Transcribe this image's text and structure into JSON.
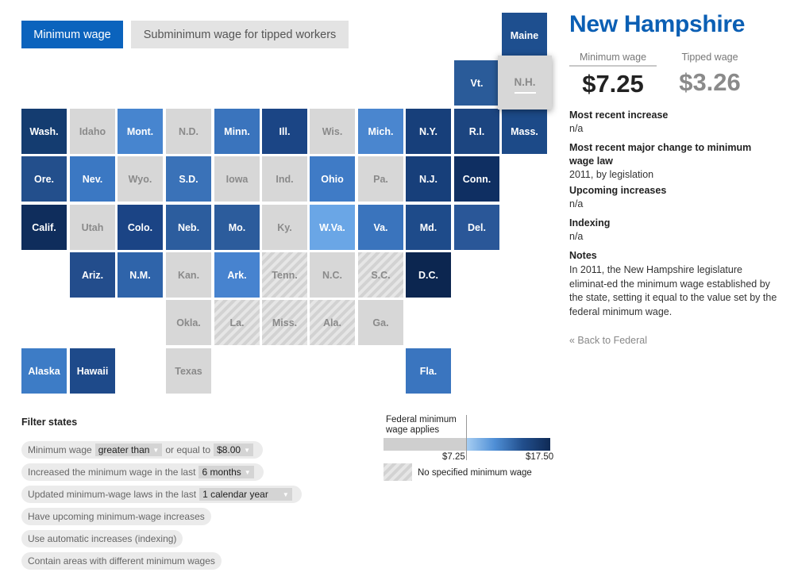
{
  "toggle": {
    "minimum_label": "Minimum wage",
    "subminimum_label": "Subminimum wage for tipped workers"
  },
  "map": {
    "selected_state": "N.H.",
    "tiles": [
      {
        "abbr": "Maine",
        "fill": "#1e4f8f",
        "style": "color"
      },
      {
        "abbr": "Vt.",
        "fill": "#2a5b99",
        "style": "color"
      },
      {
        "abbr": "N.H.",
        "fill": "#d7d7d7",
        "style": "selected"
      },
      {
        "abbr": "Wash.",
        "fill": "#143c70",
        "style": "color"
      },
      {
        "abbr": "Idaho",
        "fill": "#d7d7d7",
        "style": "grey"
      },
      {
        "abbr": "Mont.",
        "fill": "#4785cf",
        "style": "color"
      },
      {
        "abbr": "N.D.",
        "fill": "#d7d7d7",
        "style": "grey"
      },
      {
        "abbr": "Minn.",
        "fill": "#3a74bd",
        "style": "color"
      },
      {
        "abbr": "Ill.",
        "fill": "#1b4585",
        "style": "color"
      },
      {
        "abbr": "Wis.",
        "fill": "#d7d7d7",
        "style": "grey"
      },
      {
        "abbr": "Mich.",
        "fill": "#4a86cf",
        "style": "color"
      },
      {
        "abbr": "N.Y.",
        "fill": "#173f7a",
        "style": "color"
      },
      {
        "abbr": "R.I.",
        "fill": "#1c4580",
        "style": "color"
      },
      {
        "abbr": "Mass.",
        "fill": "#1c4a88",
        "style": "color"
      },
      {
        "abbr": "Ore.",
        "fill": "#234f8c",
        "style": "color"
      },
      {
        "abbr": "Nev.",
        "fill": "#3b78c3",
        "style": "color"
      },
      {
        "abbr": "Wyo.",
        "fill": "#d7d7d7",
        "style": "grey"
      },
      {
        "abbr": "S.D.",
        "fill": "#3a72b8",
        "style": "color"
      },
      {
        "abbr": "Iowa",
        "fill": "#d7d7d7",
        "style": "grey"
      },
      {
        "abbr": "Ind.",
        "fill": "#d7d7d7",
        "style": "grey"
      },
      {
        "abbr": "Ohio",
        "fill": "#3f7bc6",
        "style": "color"
      },
      {
        "abbr": "Pa.",
        "fill": "#d7d7d7",
        "style": "grey"
      },
      {
        "abbr": "N.J.",
        "fill": "#173f7a",
        "style": "color"
      },
      {
        "abbr": "Conn.",
        "fill": "#0f2f62",
        "style": "color"
      },
      {
        "abbr": "Calif.",
        "fill": "#0f2d5c",
        "style": "color"
      },
      {
        "abbr": "Utah",
        "fill": "#d7d7d7",
        "style": "grey"
      },
      {
        "abbr": "Colo.",
        "fill": "#1b4485",
        "style": "color"
      },
      {
        "abbr": "Neb.",
        "fill": "#2c5d9e",
        "style": "color"
      },
      {
        "abbr": "Mo.",
        "fill": "#2c5c9c",
        "style": "color"
      },
      {
        "abbr": "Ky.",
        "fill": "#d7d7d7",
        "style": "grey"
      },
      {
        "abbr": "W.Va.",
        "fill": "#6aa6e6",
        "style": "color"
      },
      {
        "abbr": "Va.",
        "fill": "#3a74bd",
        "style": "color"
      },
      {
        "abbr": "Md.",
        "fill": "#1e4b8a",
        "style": "color"
      },
      {
        "abbr": "Del.",
        "fill": "#2a5798",
        "style": "color"
      },
      {
        "abbr": "Ariz.",
        "fill": "#234d8c",
        "style": "color"
      },
      {
        "abbr": "N.M.",
        "fill": "#2f64aa",
        "style": "color"
      },
      {
        "abbr": "Kan.",
        "fill": "#d7d7d7",
        "style": "grey"
      },
      {
        "abbr": "Ark.",
        "fill": "#4783cf",
        "style": "color"
      },
      {
        "abbr": "Tenn.",
        "fill": "#d7d7d7",
        "style": "hatch"
      },
      {
        "abbr": "N.C.",
        "fill": "#d7d7d7",
        "style": "grey"
      },
      {
        "abbr": "S.C.",
        "fill": "#d7d7d7",
        "style": "hatch"
      },
      {
        "abbr": "D.C.",
        "fill": "#0c2650",
        "style": "color"
      },
      {
        "abbr": "Okla.",
        "fill": "#d7d7d7",
        "style": "grey"
      },
      {
        "abbr": "La.",
        "fill": "#d7d7d7",
        "style": "hatch"
      },
      {
        "abbr": "Miss.",
        "fill": "#d7d7d7",
        "style": "hatch"
      },
      {
        "abbr": "Ala.",
        "fill": "#d7d7d7",
        "style": "hatch"
      },
      {
        "abbr": "Ga.",
        "fill": "#d7d7d7",
        "style": "grey"
      },
      {
        "abbr": "Alaska",
        "fill": "#3d7cc6",
        "style": "color"
      },
      {
        "abbr": "Hawaii",
        "fill": "#1e4a8a",
        "style": "color"
      },
      {
        "abbr": "Texas",
        "fill": "#d7d7d7",
        "style": "grey"
      },
      {
        "abbr": "Fla.",
        "fill": "#3a75bf",
        "style": "color"
      }
    ]
  },
  "panel": {
    "title": "New Hampshire",
    "min_wage_label": "Minimum wage",
    "min_wage_value": "$7.25",
    "tipped_wage_label": "Tipped wage",
    "tipped_wage_value": "$3.26",
    "recent_increase_head": "Most recent increase",
    "recent_increase_val": "n/a",
    "major_change_head": "Most recent major change to minimum wage law",
    "major_change_val": "2011, by legislation",
    "upcoming_head": "Upcoming increases",
    "upcoming_val": "n/a",
    "indexing_head": "Indexing",
    "indexing_val": "n/a",
    "notes_head": "Notes",
    "notes_val": "In 2011, the New Hampshire legislature eliminat-ed the minimum wage established by the state, setting it equal to the value set by the federal minimum wage.",
    "back_link": "« Back to Federal"
  },
  "filters": {
    "title": "Filter states",
    "f1_prefix": "Minimum wage",
    "f1_select": "greater than",
    "f1_middle": "or equal to",
    "f1_value": "$8.00",
    "f2_prefix": "Increased the minimum wage in the last",
    "f2_select": "6 months",
    "f3_prefix": "Updated minimum-wage laws in the last",
    "f3_select": "1 calendar year",
    "f4": "Have upcoming minimum-wage increases",
    "f5": "Use automatic increases (indexing)",
    "f6": "Contain areas with different minimum wages"
  },
  "legend": {
    "federal_label": "Federal minimum wage applies",
    "low_value": "$7.25",
    "high_value": "$17.50",
    "none_label": "No specified minimum wage"
  },
  "colors": {
    "accent": "#0b63bd",
    "grey_tile": "#d7d7d7",
    "title_blue": "#0b5fb4"
  }
}
